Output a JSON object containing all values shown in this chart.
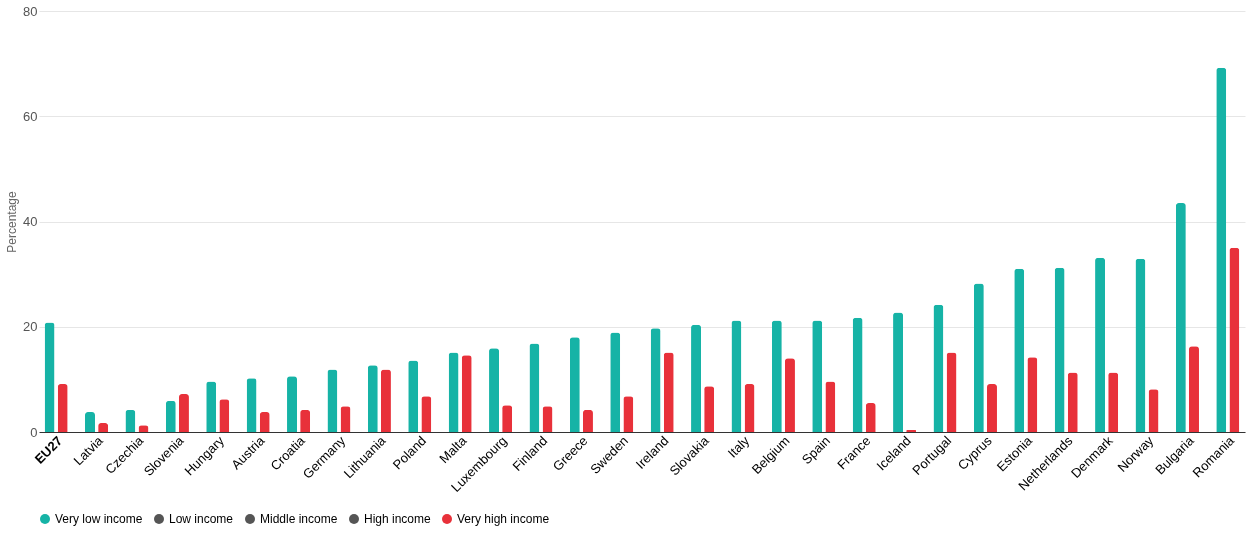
{
  "chart_data": {
    "type": "bar",
    "ylabel": "Percentage",
    "categories": [
      "EU27",
      "Latvia",
      "Czechia",
      "Slovenia",
      "Hungary",
      "Austria",
      "Croatia",
      "Germany",
      "Lithuania",
      "Poland",
      "Malta",
      "Luxembourg",
      "Finland",
      "Greece",
      "Sweden",
      "Ireland",
      "Slovakia",
      "Italy",
      "Belgium",
      "Spain",
      "France",
      "Iceland",
      "Portugal",
      "Cyprus",
      "Estonia",
      "Netherlands",
      "Denmark",
      "Norway",
      "Bulgaria",
      "Romania"
    ],
    "series": [
      {
        "name": "Very low income",
        "color": "#16b3a6",
        "values": [
          20.8,
          3.8,
          4.2,
          5.9,
          9.6,
          10.2,
          10.6,
          11.9,
          12.7,
          13.6,
          15.1,
          15.9,
          16.8,
          18.0,
          18.9,
          19.7,
          20.4,
          21.2,
          21.2,
          21.2,
          21.7,
          22.7,
          24.2,
          28.2,
          31.0,
          31.2,
          33.1,
          32.9,
          43.5,
          69.2
        ]
      },
      {
        "name": "Low income",
        "color": "#555555",
        "values": [
          null,
          null,
          null,
          null,
          null,
          null,
          null,
          null,
          null,
          null,
          null,
          null,
          null,
          null,
          null,
          null,
          null,
          null,
          null,
          null,
          null,
          null,
          null,
          null,
          null,
          null,
          null,
          null,
          null,
          null
        ]
      },
      {
        "name": "Middle income",
        "color": "#555555",
        "values": [
          null,
          null,
          null,
          null,
          null,
          null,
          null,
          null,
          null,
          null,
          null,
          null,
          null,
          null,
          null,
          null,
          null,
          null,
          null,
          null,
          null,
          null,
          null,
          null,
          null,
          null,
          null,
          null,
          null,
          null
        ]
      },
      {
        "name": "High income",
        "color": "#555555",
        "values": [
          null,
          null,
          null,
          null,
          null,
          null,
          null,
          null,
          null,
          null,
          null,
          null,
          null,
          null,
          null,
          null,
          null,
          null,
          null,
          null,
          null,
          null,
          null,
          null,
          null,
          null,
          null,
          null,
          null,
          null
        ]
      },
      {
        "name": "Very high income",
        "color": "#e8313a",
        "values": [
          9.1,
          1.7,
          1.3,
          7.2,
          6.2,
          3.8,
          4.2,
          4.9,
          11.9,
          6.8,
          14.6,
          5.1,
          4.9,
          4.2,
          6.8,
          15.1,
          8.7,
          9.1,
          14.0,
          9.6,
          5.5,
          0.4,
          15.1,
          9.1,
          14.2,
          11.3,
          11.3,
          8.1,
          16.3,
          35.0
        ]
      }
    ],
    "ylim": [
      0,
      80
    ],
    "yticks": [
      0,
      20,
      40,
      60,
      80
    ],
    "grid": "y",
    "legend": "bottom"
  }
}
